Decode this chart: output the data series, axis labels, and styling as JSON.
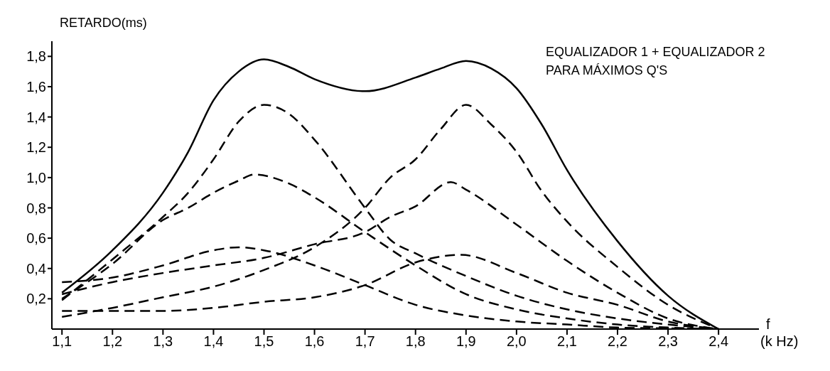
{
  "chart_data": {
    "type": "line",
    "ylabel": "RETARDO(ms)",
    "xlabel": "f",
    "annotations": [
      "EQUALIZADOR 1 + EQUALIZADOR 2",
      "PARA MÁXIMOS Q'S",
      "(k Hz)"
    ],
    "xlim": [
      1.08,
      2.48
    ],
    "ylim": [
      0,
      1.9
    ],
    "xticks": [
      {
        "value": 1.1,
        "label": "1,1"
      },
      {
        "value": 1.2,
        "label": "1,2"
      },
      {
        "value": 1.3,
        "label": "1,3"
      },
      {
        "value": 1.4,
        "label": "1,4"
      },
      {
        "value": 1.5,
        "label": "1,5"
      },
      {
        "value": 1.6,
        "label": "1,6"
      },
      {
        "value": 1.7,
        "label": "1,7"
      },
      {
        "value": 1.8,
        "label": "1,8"
      },
      {
        "value": 1.9,
        "label": "1,9"
      },
      {
        "value": 2.0,
        "label": "2,0"
      },
      {
        "value": 2.1,
        "label": "2,1"
      },
      {
        "value": 2.2,
        "label": "2,2"
      },
      {
        "value": 2.3,
        "label": "2,3"
      },
      {
        "value": 2.4,
        "label": "2,4"
      }
    ],
    "yticks": [
      {
        "value": 0.2,
        "label": "0,2"
      },
      {
        "value": 0.4,
        "label": "0,4"
      },
      {
        "value": 0.6,
        "label": "0,6"
      },
      {
        "value": 0.8,
        "label": "0,8"
      },
      {
        "value": 1.0,
        "label": "1,0"
      },
      {
        "value": 1.2,
        "label": "1,2"
      },
      {
        "value": 1.4,
        "label": "1,4"
      },
      {
        "value": 1.6,
        "label": "1,6"
      },
      {
        "value": 1.8,
        "label": "1,8"
      }
    ],
    "grid": false,
    "legend": false,
    "marker": "none",
    "series": [
      {
        "color": "#000000",
        "line_style": "solid",
        "x": [
          1.1,
          1.2,
          1.3,
          1.35,
          1.4,
          1.45,
          1.5,
          1.55,
          1.6,
          1.7,
          1.8,
          1.85,
          1.9,
          1.95,
          2.0,
          2.05,
          2.1,
          2.2,
          2.3,
          2.4
        ],
        "values": [
          0.24,
          0.52,
          0.9,
          1.17,
          1.51,
          1.7,
          1.78,
          1.73,
          1.65,
          1.57,
          1.66,
          1.72,
          1.77,
          1.72,
          1.59,
          1.35,
          1.05,
          0.58,
          0.22,
          0
        ]
      },
      {
        "color": "#000000",
        "line_style": "dashed",
        "x": [
          1.1,
          1.2,
          1.3,
          1.35,
          1.4,
          1.45,
          1.5,
          1.55,
          1.6,
          1.7,
          1.75,
          1.8,
          1.9,
          2.0,
          2.1,
          2.2,
          2.3,
          2.4
        ],
        "values": [
          0.19,
          0.46,
          0.74,
          0.9,
          1.12,
          1.37,
          1.48,
          1.42,
          1.25,
          0.8,
          0.59,
          0.5,
          0.35,
          0.22,
          0.13,
          0.07,
          0.03,
          0
        ]
      },
      {
        "color": "#000000",
        "line_style": "dashed",
        "x": [
          1.1,
          1.2,
          1.3,
          1.35,
          1.4,
          1.45,
          1.48,
          1.55,
          1.6,
          1.7,
          1.8,
          1.9,
          2.0,
          2.1,
          2.2,
          2.3,
          2.4
        ],
        "values": [
          0.2,
          0.43,
          0.72,
          0.8,
          0.9,
          0.98,
          1.02,
          0.96,
          0.87,
          0.64,
          0.42,
          0.23,
          0.13,
          0.07,
          0.03,
          0.01,
          0
        ]
      },
      {
        "color": "#000000",
        "line_style": "dashed",
        "x": [
          1.1,
          1.2,
          1.3,
          1.4,
          1.45,
          1.5,
          1.6,
          1.7,
          1.8,
          1.9,
          2.0,
          2.1,
          2.2,
          2.3,
          2.4
        ],
        "values": [
          0.31,
          0.34,
          0.42,
          0.52,
          0.54,
          0.52,
          0.42,
          0.29,
          0.16,
          0.09,
          0.05,
          0.03,
          0.01,
          0.005,
          0
        ]
      },
      {
        "color": "#000000",
        "line_style": "dashed",
        "x": [
          1.1,
          1.2,
          1.3,
          1.4,
          1.5,
          1.6,
          1.7,
          1.75,
          1.8,
          1.85,
          1.9,
          1.95,
          2.0,
          2.05,
          2.1,
          2.2,
          2.3,
          2.4
        ],
        "values": [
          0.08,
          0.14,
          0.21,
          0.28,
          0.39,
          0.54,
          0.8,
          1.0,
          1.12,
          1.32,
          1.48,
          1.35,
          1.17,
          0.91,
          0.71,
          0.41,
          0.16,
          0
        ]
      },
      {
        "color": "#000000",
        "line_style": "dashed",
        "x": [
          1.1,
          1.2,
          1.3,
          1.4,
          1.5,
          1.6,
          1.7,
          1.75,
          1.8,
          1.87,
          1.9,
          2.0,
          2.1,
          2.2,
          2.3,
          2.4
        ],
        "values": [
          0.23,
          0.31,
          0.37,
          0.42,
          0.47,
          0.56,
          0.64,
          0.74,
          0.81,
          0.97,
          0.92,
          0.69,
          0.45,
          0.24,
          0.07,
          0
        ]
      },
      {
        "color": "#000000",
        "line_style": "dashed",
        "x": [
          1.1,
          1.2,
          1.3,
          1.4,
          1.5,
          1.6,
          1.7,
          1.8,
          1.89,
          2.0,
          2.1,
          2.2,
          2.3,
          2.4
        ],
        "values": [
          0.12,
          0.12,
          0.12,
          0.14,
          0.18,
          0.21,
          0.29,
          0.44,
          0.49,
          0.37,
          0.24,
          0.16,
          0.05,
          0
        ]
      }
    ]
  }
}
